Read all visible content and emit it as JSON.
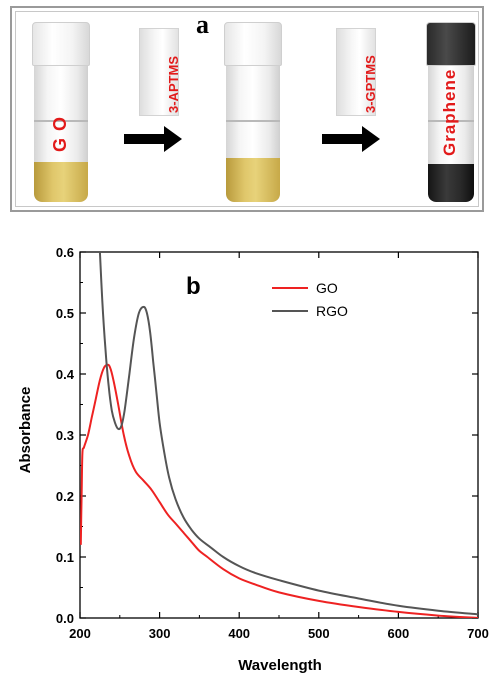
{
  "panel_a": {
    "letter": "a",
    "vials": [
      {
        "label": "G O",
        "liquid": "go"
      },
      {
        "label": "",
        "liquid": "go"
      },
      {
        "label": "Graphene",
        "liquid": "gr"
      }
    ],
    "reagents": [
      "3-APTMS",
      "3-GPTMS"
    ],
    "colors": {
      "label_text": "#e21a1a",
      "arrow": "#000000"
    }
  },
  "chart_data": {
    "type": "line",
    "panel_letter": "b",
    "xlabel": "Wavelength",
    "ylabel": "Absorbance",
    "xlim": [
      200,
      700
    ],
    "ylim": [
      0,
      0.6
    ],
    "xticks": [
      200,
      300,
      400,
      500,
      600,
      700
    ],
    "yticks": [
      0.0,
      0.1,
      0.2,
      0.3,
      0.4,
      0.5,
      0.6
    ],
    "xtick_labels": [
      "200",
      "300",
      "400",
      "500",
      "600",
      "700"
    ],
    "ytick_labels": [
      "0.0",
      "0.1",
      "0.2",
      "0.3",
      "0.4",
      "0.5",
      "0.6"
    ],
    "grid": false,
    "legend_placement": "top-center",
    "series": [
      {
        "name": "GO",
        "color": "#ee2222",
        "x": [
          201,
          202,
          203,
          205,
          210,
          215,
          220,
          225,
          230,
          235,
          238,
          242,
          248,
          255,
          262,
          270,
          280,
          290,
          300,
          310,
          320,
          330,
          340,
          350,
          360,
          380,
          400,
          420,
          450,
          500,
          550,
          600,
          650,
          700
        ],
        "y": [
          0.12,
          0.2,
          0.27,
          0.28,
          0.3,
          0.33,
          0.36,
          0.39,
          0.41,
          0.415,
          0.41,
          0.39,
          0.35,
          0.3,
          0.265,
          0.24,
          0.225,
          0.21,
          0.19,
          0.17,
          0.155,
          0.14,
          0.125,
          0.11,
          0.1,
          0.08,
          0.065,
          0.055,
          0.042,
          0.028,
          0.018,
          0.01,
          0.004,
          0.0
        ]
      },
      {
        "name": "RGO",
        "color": "#555555",
        "x": [
          225,
          228,
          232,
          236,
          240,
          244,
          248,
          252,
          256,
          262,
          268,
          274,
          280,
          284,
          288,
          292,
          296,
          300,
          306,
          312,
          320,
          330,
          340,
          350,
          365,
          380,
          400,
          420,
          450,
          500,
          550,
          600,
          650,
          700
        ],
        "y": [
          0.6,
          0.52,
          0.44,
          0.38,
          0.34,
          0.32,
          0.31,
          0.315,
          0.34,
          0.4,
          0.46,
          0.5,
          0.51,
          0.5,
          0.47,
          0.42,
          0.37,
          0.32,
          0.27,
          0.23,
          0.195,
          0.165,
          0.145,
          0.13,
          0.115,
          0.1,
          0.085,
          0.074,
          0.062,
          0.045,
          0.032,
          0.02,
          0.012,
          0.006
        ]
      }
    ]
  }
}
